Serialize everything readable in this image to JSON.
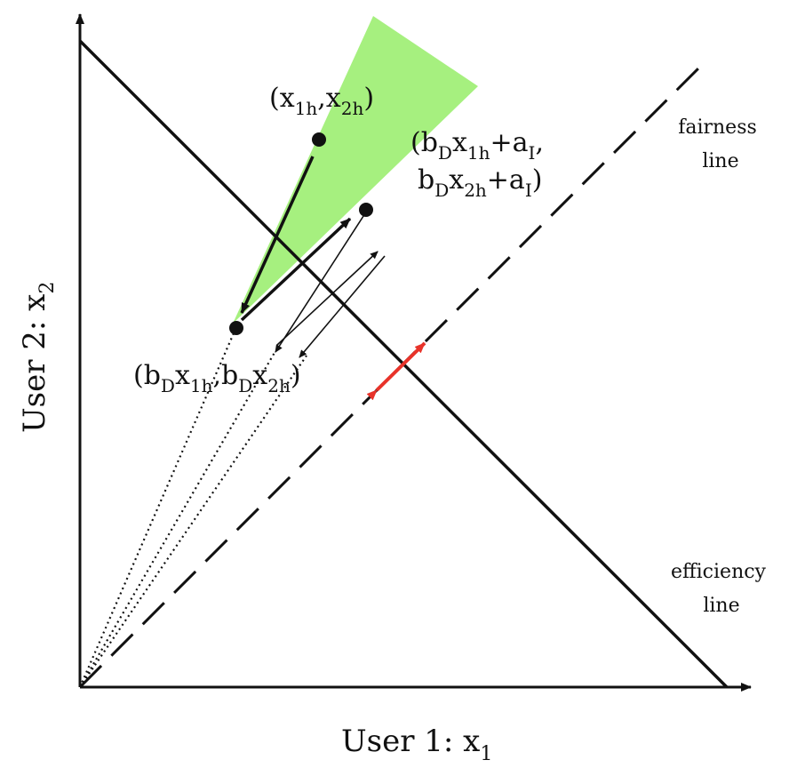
{
  "axes": {
    "x_label": "User 1: x",
    "x_sub": "1",
    "y_label": "User 2: x",
    "y_sub": "2"
  },
  "lines": {
    "fairness": [
      "fairness",
      "line"
    ],
    "efficiency": [
      "efficiency",
      "line"
    ]
  },
  "points": {
    "start": {
      "paren_open": "(",
      "x": "x",
      "s1": "1h",
      "comma": ",",
      "y": "x",
      "s2": "2h",
      "paren_close": ")"
    },
    "decrease": {
      "p1": "(b",
      "s1": "D",
      "p2": "x",
      "s2": "1h",
      "p3": ",b",
      "s3": "D",
      "p4": "x",
      "s4": "2h",
      "p5": ")"
    },
    "increase_line1": {
      "p1": "(b",
      "s1": "D",
      "p2": "x",
      "s2": "1h",
      "p3": "+a",
      "s3": "I",
      "p4": ","
    },
    "increase_line2": {
      "p1": "b",
      "s1": "D",
      "p2": "x",
      "s2": "2h",
      "p3": "+a",
      "s3": "I",
      "p4": ")"
    }
  },
  "colors": {
    "axis": "#111111",
    "region": "#a6f07f",
    "arrow_red": "#e8332a"
  }
}
